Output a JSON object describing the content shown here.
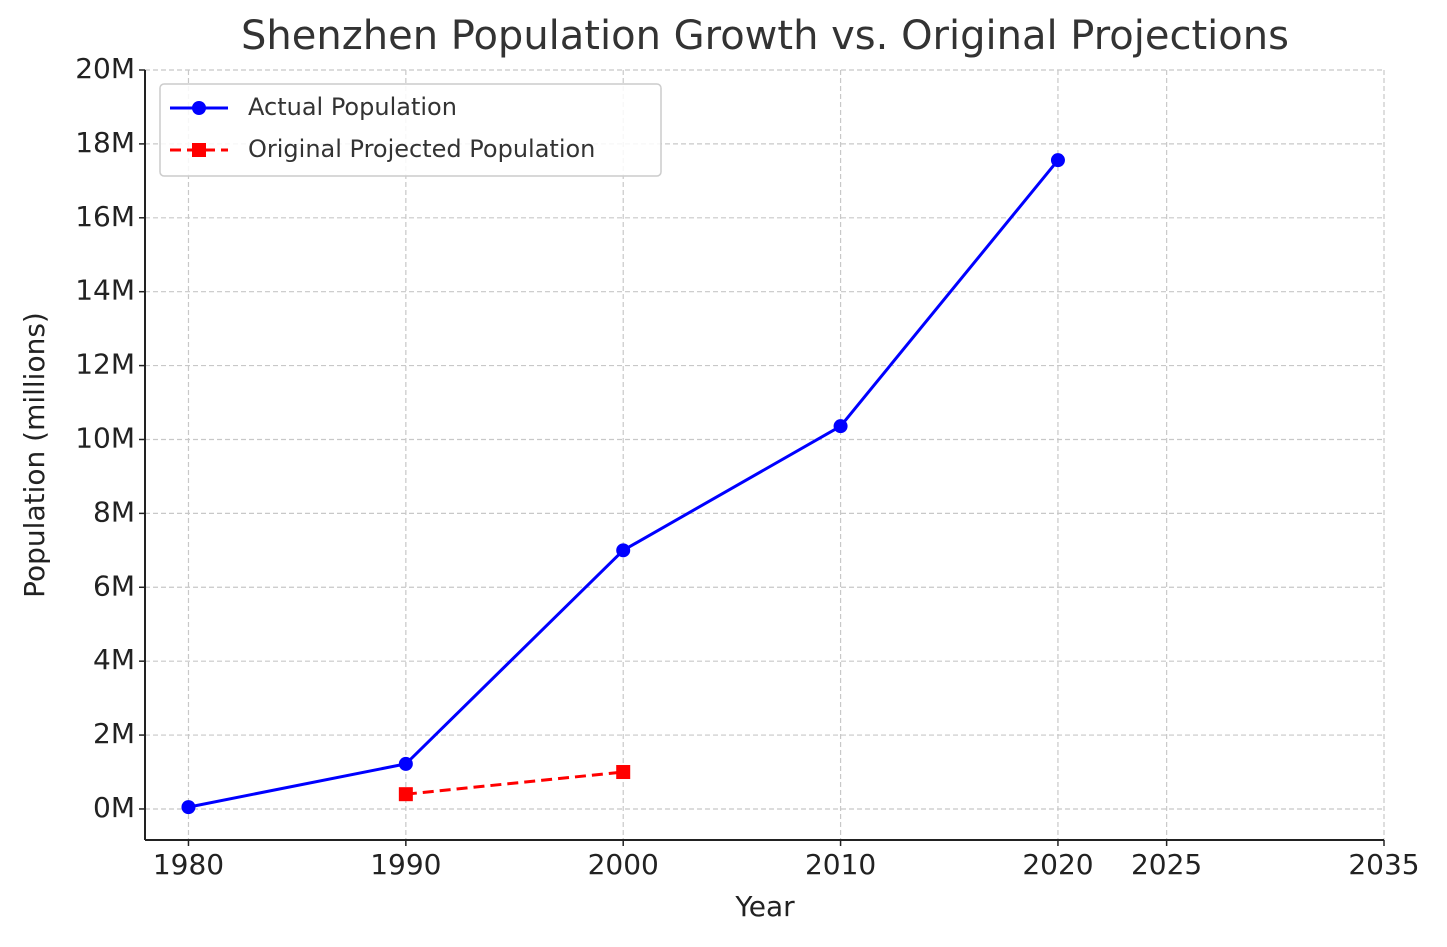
{
  "chart_data": {
    "type": "line",
    "title": "Shenzhen Population Growth vs. Original Projections",
    "x_label": "Year",
    "y_label": "Population (millions)",
    "series": [
      {
        "name": "Actual Population",
        "color": "#0000ff",
        "marker": "circle",
        "linestyle": "solid",
        "x": [
          1980,
          1990,
          2000,
          2010,
          2020
        ],
        "values": [
          0.05,
          1.22,
          7.0,
          10.36,
          17.56
        ]
      },
      {
        "name": "Original Projected Population",
        "color": "#ff0000",
        "marker": "square",
        "linestyle": "dashed",
        "x": [
          1990,
          2000
        ],
        "values": [
          0.4,
          1.0
        ]
      }
    ],
    "xlim": [
      1978,
      2035
    ],
    "xticks": [
      1980,
      1990,
      2000,
      2010,
      2020,
      2025,
      2035
    ],
    "ylim": [
      -0.84,
      20
    ],
    "yticks": [
      {
        "value": 0,
        "label": "0M"
      },
      {
        "value": 2,
        "label": "2M"
      },
      {
        "value": 4,
        "label": "4M"
      },
      {
        "value": 6,
        "label": "6M"
      },
      {
        "value": 8,
        "label": "8M"
      },
      {
        "value": 10,
        "label": "10M"
      },
      {
        "value": 12,
        "label": "12M"
      },
      {
        "value": 14,
        "label": "14M"
      },
      {
        "value": 16,
        "label": "16M"
      },
      {
        "value": 18,
        "label": "18M"
      },
      {
        "value": 20,
        "label": "20M"
      }
    ],
    "grid": true,
    "legend": "upper left"
  }
}
